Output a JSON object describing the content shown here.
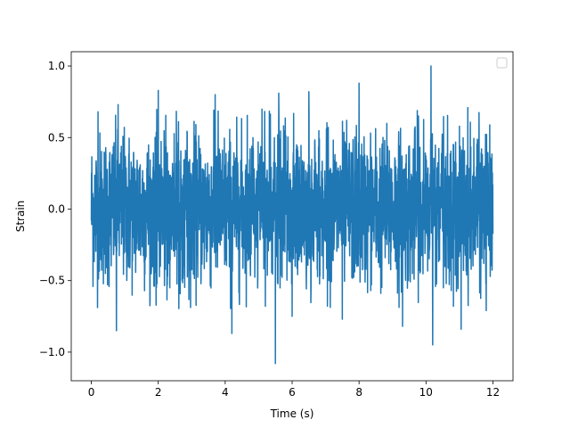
{
  "chart_data": {
    "type": "line",
    "title": "",
    "xlabel": "Time (s)",
    "ylabel": "Strain",
    "xlim": [
      -0.6,
      12.6
    ],
    "ylim": [
      -1.2,
      1.1
    ],
    "x_ticks": [
      0,
      2,
      4,
      6,
      8,
      10,
      12
    ],
    "x_tick_labels": [
      "0",
      "2",
      "4",
      "6",
      "8",
      "10",
      "12"
    ],
    "y_ticks": [
      -1.0,
      -0.5,
      0.0,
      0.5,
      1.0
    ],
    "y_tick_labels": [
      "−1.0",
      "−0.5",
      "0.0",
      "0.5",
      "1.0"
    ],
    "grid": false,
    "legend": {
      "placement": "upper right",
      "entries": []
    },
    "series": [
      {
        "color": "#1f77b4",
        "description": "dense noise-like strain signal sampled over 0 to 12 s",
        "x_start": 0,
        "x_end": 12,
        "core_band": [
          -0.42,
          0.42
        ],
        "typical_peak_band": [
          -0.7,
          0.7
        ],
        "notable_peaks": [
          {
            "x": 0.2,
            "y": 0.68
          },
          {
            "x": 0.8,
            "y": 0.73
          },
          {
            "x": 2.0,
            "y": 0.83
          },
          {
            "x": 3.7,
            "y": 0.8
          },
          {
            "x": 5.6,
            "y": 0.81
          },
          {
            "x": 6.5,
            "y": 0.82
          },
          {
            "x": 8.0,
            "y": 0.88
          },
          {
            "x": 10.15,
            "y": 1.0
          },
          {
            "x": 11.25,
            "y": 0.71
          }
        ],
        "notable_troughs": [
          {
            "x": 0.75,
            "y": -0.85
          },
          {
            "x": 4.2,
            "y": -0.87
          },
          {
            "x": 5.5,
            "y": -1.08
          },
          {
            "x": 6.0,
            "y": -0.75
          },
          {
            "x": 7.5,
            "y": -0.77
          },
          {
            "x": 9.3,
            "y": -0.82
          },
          {
            "x": 10.2,
            "y": -0.95
          },
          {
            "x": 11.05,
            "y": -0.84
          },
          {
            "x": 11.8,
            "y": -0.71
          }
        ]
      }
    ]
  }
}
